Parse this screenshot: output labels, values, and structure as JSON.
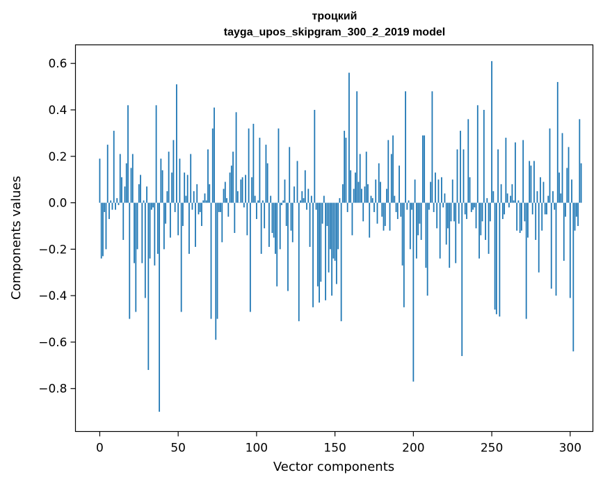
{
  "chart_data": {
    "type": "bar",
    "title": "троцкий",
    "subtitle": "tayga_upos_skipgram_300_2_2019 model",
    "xlabel": "Vector components",
    "ylabel": "Components values",
    "xlim": [
      -15.5,
      314.5
    ],
    "ylim": [
      -0.985,
      0.68
    ],
    "xticks": [
      0,
      50,
      100,
      150,
      200,
      250,
      300
    ],
    "xtick_labels": [
      "0",
      "50",
      "100",
      "150",
      "200",
      "250",
      "300"
    ],
    "yticks": [
      -0.8,
      -0.6,
      -0.4,
      -0.2,
      0.0,
      0.2,
      0.4,
      0.6
    ],
    "ytick_labels": [
      "−0.8",
      "−0.6",
      "−0.4",
      "−0.2",
      "0.0",
      "0.2",
      "0.4",
      "0.6"
    ],
    "grid": false,
    "bar_color": "#1f77b4",
    "values": [
      0.19,
      -0.24,
      -0.23,
      -0.04,
      -0.2,
      0.25,
      -0.07,
      0.01,
      -0.03,
      0.31,
      -0.03,
      0.02,
      -0.01,
      0.21,
      0.11,
      -0.16,
      0.07,
      0.17,
      0.42,
      -0.5,
      0.15,
      0.21,
      -0.26,
      -0.47,
      -0.2,
      0.08,
      0.12,
      -0.26,
      0.01,
      -0.41,
      0.07,
      -0.72,
      -0.24,
      -0.03,
      -0.02,
      -0.27,
      0.42,
      -0.22,
      -0.9,
      0.19,
      0.14,
      -0.2,
      -0.09,
      0.05,
      0.22,
      -0.15,
      0.13,
      0.27,
      -0.04,
      0.51,
      -0.14,
      0.19,
      -0.47,
      -0.1,
      0.13,
      0.03,
      0.12,
      -0.22,
      0.21,
      -0.03,
      0.05,
      -0.19,
      0.08,
      -0.05,
      -0.04,
      -0.1,
      0.01,
      0.04,
      0.01,
      0.23,
      0.08,
      -0.5,
      0.32,
      0.41,
      -0.59,
      -0.5,
      -0.04,
      -0.04,
      -0.17,
      0.06,
      0.09,
      0.02,
      -0.06,
      0.13,
      0.16,
      0.22,
      -0.13,
      0.39,
      0.05,
      0.0,
      0.1,
      0.11,
      -0.02,
      0.12,
      -0.14,
      0.32,
      -0.47,
      0.11,
      0.34,
      0.03,
      -0.07,
      0.01,
      0.28,
      -0.22,
      0.01,
      -0.11,
      0.25,
      0.17,
      -0.19,
      0.03,
      -0.13,
      -0.15,
      -0.22,
      -0.36,
      0.32,
      -0.2,
      -0.01,
      0.01,
      0.1,
      -0.1,
      -0.38,
      0.24,
      -0.12,
      -0.17,
      0.07,
      0.0,
      0.18,
      -0.51,
      0.01,
      0.05,
      0.02,
      0.14,
      -0.03,
      0.06,
      -0.19,
      0.03,
      -0.45,
      0.4,
      -0.03,
      -0.36,
      -0.43,
      -0.34,
      -0.09,
      0.03,
      -0.42,
      -0.1,
      -0.3,
      -0.2,
      -0.4,
      -0.24,
      -0.25,
      -0.35,
      -0.2,
      0.02,
      -0.51,
      0.08,
      0.31,
      0.28,
      -0.04,
      0.56,
      0.14,
      -0.14,
      0.06,
      0.13,
      0.48,
      0.09,
      0.21,
      0.06,
      -0.08,
      0.07,
      0.22,
      0.08,
      -0.15,
      0.03,
      0.02,
      -0.04,
      0.1,
      -0.09,
      0.17,
      0.09,
      -0.06,
      -0.12,
      -0.1,
      0.06,
      0.27,
      -0.12,
      0.21,
      0.29,
      0.03,
      -0.04,
      -0.07,
      0.16,
      -0.06,
      -0.27,
      -0.45,
      0.48,
      -0.03,
      0.01,
      -0.2,
      -0.03,
      -0.77,
      0.1,
      -0.24,
      -0.14,
      -0.09,
      -0.16,
      0.29,
      0.29,
      -0.28,
      -0.4,
      -0.03,
      0.09,
      0.48,
      -0.04,
      0.13,
      -0.11,
      0.1,
      -0.24,
      0.11,
      -0.02,
      0.04,
      -0.18,
      -0.11,
      -0.28,
      -0.08,
      0.1,
      -0.08,
      -0.26,
      0.23,
      -0.09,
      0.31,
      -0.66,
      0.23,
      -0.05,
      -0.07,
      0.36,
      0.11,
      -0.04,
      -0.03,
      -0.02,
      -0.11,
      0.42,
      -0.24,
      -0.14,
      -0.08,
      0.4,
      -0.16,
      0.02,
      -0.22,
      -0.08,
      0.61,
      0.05,
      -0.46,
      -0.48,
      0.23,
      -0.49,
      0.08,
      -0.07,
      -0.05,
      0.28,
      0.04,
      -0.02,
      0.03,
      0.08,
      0.01,
      0.26,
      -0.12,
      0.01,
      -0.13,
      -0.12,
      0.27,
      -0.08,
      -0.5,
      -0.15,
      0.18,
      0.16,
      -0.05,
      0.18,
      -0.16,
      0.05,
      -0.3,
      0.11,
      -0.12,
      0.09,
      -0.05,
      -0.05,
      0.03,
      0.32,
      -0.37,
      0.05,
      -0.03,
      -0.4,
      0.52,
      0.13,
      0.04,
      0.3,
      -0.25,
      -0.06,
      0.15,
      0.24,
      -0.41,
      0.1,
      -0.64,
      -0.12,
      -0.06,
      -0.1,
      0.36,
      0.17
    ]
  }
}
